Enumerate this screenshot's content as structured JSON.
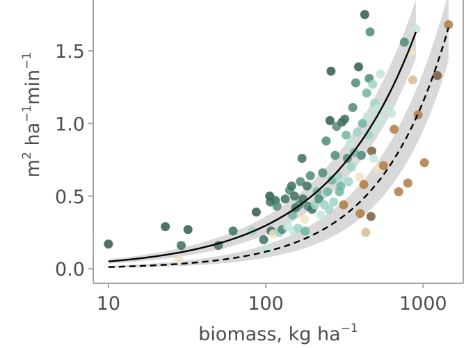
{
  "chart_data": {
    "type": "scatter",
    "xscale": "log10",
    "xlim": [
      8,
      1800
    ],
    "ylim": [
      -0.1,
      1.85
    ],
    "grid": false,
    "legend": "none",
    "xticks": [
      {
        "value": 10,
        "label": "10"
      },
      {
        "value": 100,
        "label": "100"
      },
      {
        "value": 1000,
        "label": "1000"
      }
    ],
    "yticks": [
      {
        "value": 0.0,
        "label": "0.0"
      },
      {
        "value": 0.5,
        "label": "0.5"
      },
      {
        "value": 1.0,
        "label": "1.0"
      },
      {
        "value": 1.5,
        "label": "1.5"
      }
    ],
    "xlabel": {
      "main": "biomass, kg ha",
      "sup": "−1"
    },
    "ylabel": {
      "parts": [
        {
          "t": "m",
          "sup": false
        },
        {
          "t": "2",
          "sup": true
        },
        {
          "t": " ha",
          "sup": false
        },
        {
          "t": "−1",
          "sup": true
        },
        {
          "t": "min",
          "sup": false
        },
        {
          "t": "−1",
          "sup": true
        }
      ]
    },
    "colors": {
      "band": "#d9d9d9",
      "line": "#000000",
      "point_opacity": 0.85
    },
    "curves": [
      {
        "style": "solid",
        "x": [
          10,
          900
        ],
        "y": [
          0.05,
          1.63
        ],
        "band_low": [
          0.035,
          1.45
        ],
        "band_high": [
          0.065,
          1.85
        ],
        "exponent": 0.775
      },
      {
        "style": "dashed",
        "x": [
          10,
          1450
        ],
        "y": [
          0.012,
          1.66
        ],
        "band_low": [
          0.006,
          1.43
        ],
        "band_high": [
          0.02,
          1.9
        ],
        "exponent": 0.99
      }
    ],
    "points": [
      {
        "x": 10,
        "y": 0.17,
        "c": "#2f5a4c"
      },
      {
        "x": 23,
        "y": 0.29,
        "c": "#2f5a4c"
      },
      {
        "x": 28,
        "y": 0.06,
        "c": "#f2e3c0"
      },
      {
        "x": 29,
        "y": 0.16,
        "c": "#3d6e5f"
      },
      {
        "x": 32,
        "y": 0.27,
        "c": "#2f5a4c"
      },
      {
        "x": 50,
        "y": 0.16,
        "c": "#3d6e5f"
      },
      {
        "x": 62,
        "y": 0.26,
        "c": "#3d6e5f"
      },
      {
        "x": 82,
        "y": 0.26,
        "c": "#9fd3c7"
      },
      {
        "x": 87,
        "y": 0.39,
        "c": "#2f5a4c"
      },
      {
        "x": 97,
        "y": 0.2,
        "c": "#3d6e5f"
      },
      {
        "x": 102,
        "y": 0.13,
        "c": "#c3e6dd"
      },
      {
        "x": 106,
        "y": 0.5,
        "c": "#2f5a4c"
      },
      {
        "x": 107,
        "y": 0.46,
        "c": "#3d6e5f"
      },
      {
        "x": 108,
        "y": 0.26,
        "c": "#3d6e5f"
      },
      {
        "x": 112,
        "y": 0.24,
        "c": "#f2e3c0"
      },
      {
        "x": 115,
        "y": 0.47,
        "c": "#3d6e5f"
      },
      {
        "x": 118,
        "y": 0.43,
        "c": "#4b8a7a"
      },
      {
        "x": 122,
        "y": 0.25,
        "c": "#9fd3c7"
      },
      {
        "x": 127,
        "y": 0.27,
        "c": "#4b8a7a"
      },
      {
        "x": 133,
        "y": 0.48,
        "c": "#3d6e5f"
      },
      {
        "x": 138,
        "y": 0.29,
        "c": "#c3e6dd"
      },
      {
        "x": 142,
        "y": 0.54,
        "c": "#4b8a7a"
      },
      {
        "x": 146,
        "y": 0.57,
        "c": "#3d6e5f"
      },
      {
        "x": 148,
        "y": 0.37,
        "c": "#6fb5a5"
      },
      {
        "x": 150,
        "y": 0.26,
        "c": "#c3e6dd"
      },
      {
        "x": 152,
        "y": 0.5,
        "c": "#3d6e5f"
      },
      {
        "x": 155,
        "y": 0.42,
        "c": "#3d6e5f"
      },
      {
        "x": 160,
        "y": 0.28,
        "c": "#9fd3c7"
      },
      {
        "x": 163,
        "y": 0.44,
        "c": "#4b8a7a"
      },
      {
        "x": 166,
        "y": 0.6,
        "c": "#4b8a7a"
      },
      {
        "x": 170,
        "y": 0.76,
        "c": "#3d6e5f"
      },
      {
        "x": 172,
        "y": 0.48,
        "c": "#3d6e5f"
      },
      {
        "x": 176,
        "y": 0.34,
        "c": "#f2e3c0"
      },
      {
        "x": 178,
        "y": 0.26,
        "c": "#6fb5a5"
      },
      {
        "x": 183,
        "y": 0.57,
        "c": "#3d6e5f"
      },
      {
        "x": 186,
        "y": 0.43,
        "c": "#4b8a7a"
      },
      {
        "x": 192,
        "y": 0.64,
        "c": "#4b8a7a"
      },
      {
        "x": 197,
        "y": 0.41,
        "c": "#3d6e5f"
      },
      {
        "x": 206,
        "y": 0.44,
        "c": "#9fd3c7"
      },
      {
        "x": 212,
        "y": 0.53,
        "c": "#6fb5a5"
      },
      {
        "x": 218,
        "y": 0.48,
        "c": "#4b8a7a"
      },
      {
        "x": 224,
        "y": 0.37,
        "c": "#c3e6dd"
      },
      {
        "x": 230,
        "y": 0.66,
        "c": "#4b8a7a"
      },
      {
        "x": 236,
        "y": 0.44,
        "c": "#9fd3c7"
      },
      {
        "x": 242,
        "y": 0.88,
        "c": "#4b8a7a"
      },
      {
        "x": 247,
        "y": 0.53,
        "c": "#6fb5a5"
      },
      {
        "x": 252,
        "y": 0.41,
        "c": "#9fd3c7"
      },
      {
        "x": 256,
        "y": 1.02,
        "c": "#2f5a4c"
      },
      {
        "x": 260,
        "y": 1.36,
        "c": "#2f5a4c"
      },
      {
        "x": 264,
        "y": 0.61,
        "c": "#6fb5a5"
      },
      {
        "x": 270,
        "y": 0.46,
        "c": "#9fd3c7"
      },
      {
        "x": 276,
        "y": 0.78,
        "c": "#4b8a7a"
      },
      {
        "x": 282,
        "y": 0.98,
        "c": "#4b8a7a"
      },
      {
        "x": 288,
        "y": 0.64,
        "c": "#9fd3c7"
      },
      {
        "x": 294,
        "y": 0.53,
        "c": "#6fb5a5"
      },
      {
        "x": 300,
        "y": 0.57,
        "c": "#6fb5a5"
      },
      {
        "x": 306,
        "y": 1.01,
        "c": "#3d6e5f"
      },
      {
        "x": 312,
        "y": 0.44,
        "c": "#b07a3f"
      },
      {
        "x": 318,
        "y": 1.03,
        "c": "#3d6e5f"
      },
      {
        "x": 324,
        "y": 0.92,
        "c": "#6fb5a5"
      },
      {
        "x": 330,
        "y": 0.76,
        "c": "#4b8a7a"
      },
      {
        "x": 336,
        "y": 0.6,
        "c": "#9fd3c7"
      },
      {
        "x": 343,
        "y": 0.86,
        "c": "#c3e6dd"
      },
      {
        "x": 350,
        "y": 0.7,
        "c": "#9fd3c7"
      },
      {
        "x": 357,
        "y": 1.11,
        "c": "#4b8a7a"
      },
      {
        "x": 365,
        "y": 0.8,
        "c": "#6fb5a5"
      },
      {
        "x": 373,
        "y": 1.28,
        "c": "#4b8a7a"
      },
      {
        "x": 381,
        "y": 0.94,
        "c": "#9fd3c7"
      },
      {
        "x": 389,
        "y": 1.39,
        "c": "#2f5a4c"
      },
      {
        "x": 394,
        "y": 0.63,
        "c": "#f2e3c0"
      },
      {
        "x": 398,
        "y": 0.38,
        "c": "#b07a3f"
      },
      {
        "x": 405,
        "y": 0.78,
        "c": "#4b8a7a"
      },
      {
        "x": 412,
        "y": 1.0,
        "c": "#6fb5a5"
      },
      {
        "x": 420,
        "y": 0.58,
        "c": "#b07a3f"
      },
      {
        "x": 426,
        "y": 1.75,
        "c": "#2f5a4c"
      },
      {
        "x": 432,
        "y": 0.25,
        "c": "#ddb98a"
      },
      {
        "x": 438,
        "y": 1.21,
        "c": "#6fb5a5"
      },
      {
        "x": 444,
        "y": 1.05,
        "c": "#c3e6dd"
      },
      {
        "x": 450,
        "y": 0.92,
        "c": "#9fd3c7"
      },
      {
        "x": 455,
        "y": 1.31,
        "c": "#4b8a7a"
      },
      {
        "x": 460,
        "y": 1.63,
        "c": "#4b8a7a"
      },
      {
        "x": 466,
        "y": 0.36,
        "c": "#7a5a3a"
      },
      {
        "x": 472,
        "y": 0.81,
        "c": "#7a5a3a"
      },
      {
        "x": 478,
        "y": 1.27,
        "c": "#9fd3c7"
      },
      {
        "x": 484,
        "y": 0.76,
        "c": "#c3e6dd"
      },
      {
        "x": 492,
        "y": 1.14,
        "c": "#9fd3c7"
      },
      {
        "x": 500,
        "y": 0.98,
        "c": "#c3e6dd"
      },
      {
        "x": 510,
        "y": 1.1,
        "c": "#c3e6dd"
      },
      {
        "x": 520,
        "y": 0.69,
        "c": "#f2e3c0"
      },
      {
        "x": 535,
        "y": 1.34,
        "c": "#c3e6dd"
      },
      {
        "x": 548,
        "y": 1.03,
        "c": "#c3e6dd"
      },
      {
        "x": 560,
        "y": 0.71,
        "c": "#b07a3f"
      },
      {
        "x": 600,
        "y": 1.11,
        "c": "#c3e6dd"
      },
      {
        "x": 630,
        "y": 1.07,
        "c": "#c3e6dd"
      },
      {
        "x": 655,
        "y": 0.96,
        "c": "#b07a3f"
      },
      {
        "x": 700,
        "y": 0.53,
        "c": "#b07a3f"
      },
      {
        "x": 760,
        "y": 1.56,
        "c": "#4b8a7a"
      },
      {
        "x": 800,
        "y": 0.59,
        "c": "#b07a3f"
      },
      {
        "x": 830,
        "y": 1.49,
        "c": "#f2e3c0"
      },
      {
        "x": 860,
        "y": 1.3,
        "c": "#ddb98a"
      },
      {
        "x": 900,
        "y": 1.65,
        "c": "#c3e6dd"
      },
      {
        "x": 930,
        "y": 1.06,
        "c": "#b07a3f"
      },
      {
        "x": 1020,
        "y": 0.73,
        "c": "#b07a3f"
      },
      {
        "x": 1230,
        "y": 1.33,
        "c": "#7a5a3a"
      },
      {
        "x": 1450,
        "y": 1.68,
        "c": "#b07a3f"
      }
    ]
  }
}
